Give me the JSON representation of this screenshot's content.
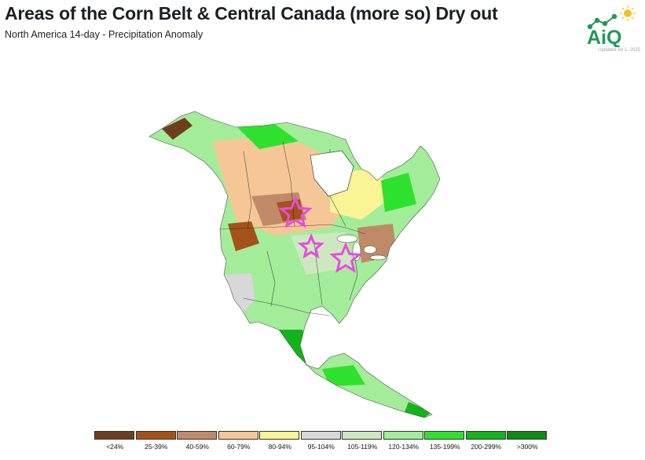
{
  "header": {
    "title": "Areas of the Corn Belt & Central Canada (more so) Dry out",
    "subtitle": "North America 14-day - Precipitation Anomaly"
  },
  "logo": {
    "text": "AiQ",
    "updated": "Updated Jul 1, 2025",
    "brand_color": "#1d9a59",
    "sun_color": "#f2c224"
  },
  "map": {
    "region": "North America",
    "markers": [
      {
        "icon": "star-outline-icon",
        "color": "#e84ce0"
      },
      {
        "icon": "star-outline-icon",
        "color": "#e84ce0"
      },
      {
        "icon": "star-outline-icon",
        "color": "#e84ce0"
      }
    ]
  },
  "legend": {
    "items": [
      {
        "label": "<24%",
        "color": "#6e3f1e"
      },
      {
        "label": "25-39%",
        "color": "#a4521a"
      },
      {
        "label": "40-59%",
        "color": "#bf8a67"
      },
      {
        "label": "60-79%",
        "color": "#f6c796"
      },
      {
        "label": "80-94%",
        "color": "#f9f494"
      },
      {
        "label": "95-104%",
        "color": "#d8d8d8"
      },
      {
        "label": "105-119%",
        "color": "#cde8c0"
      },
      {
        "label": "120-134%",
        "color": "#a3ec9a"
      },
      {
        "label": "135-199%",
        "color": "#2fe12f"
      },
      {
        "label": "200-299%",
        "color": "#14b31c"
      },
      {
        "label": ">300%",
        "color": "#0e8a14"
      }
    ]
  }
}
